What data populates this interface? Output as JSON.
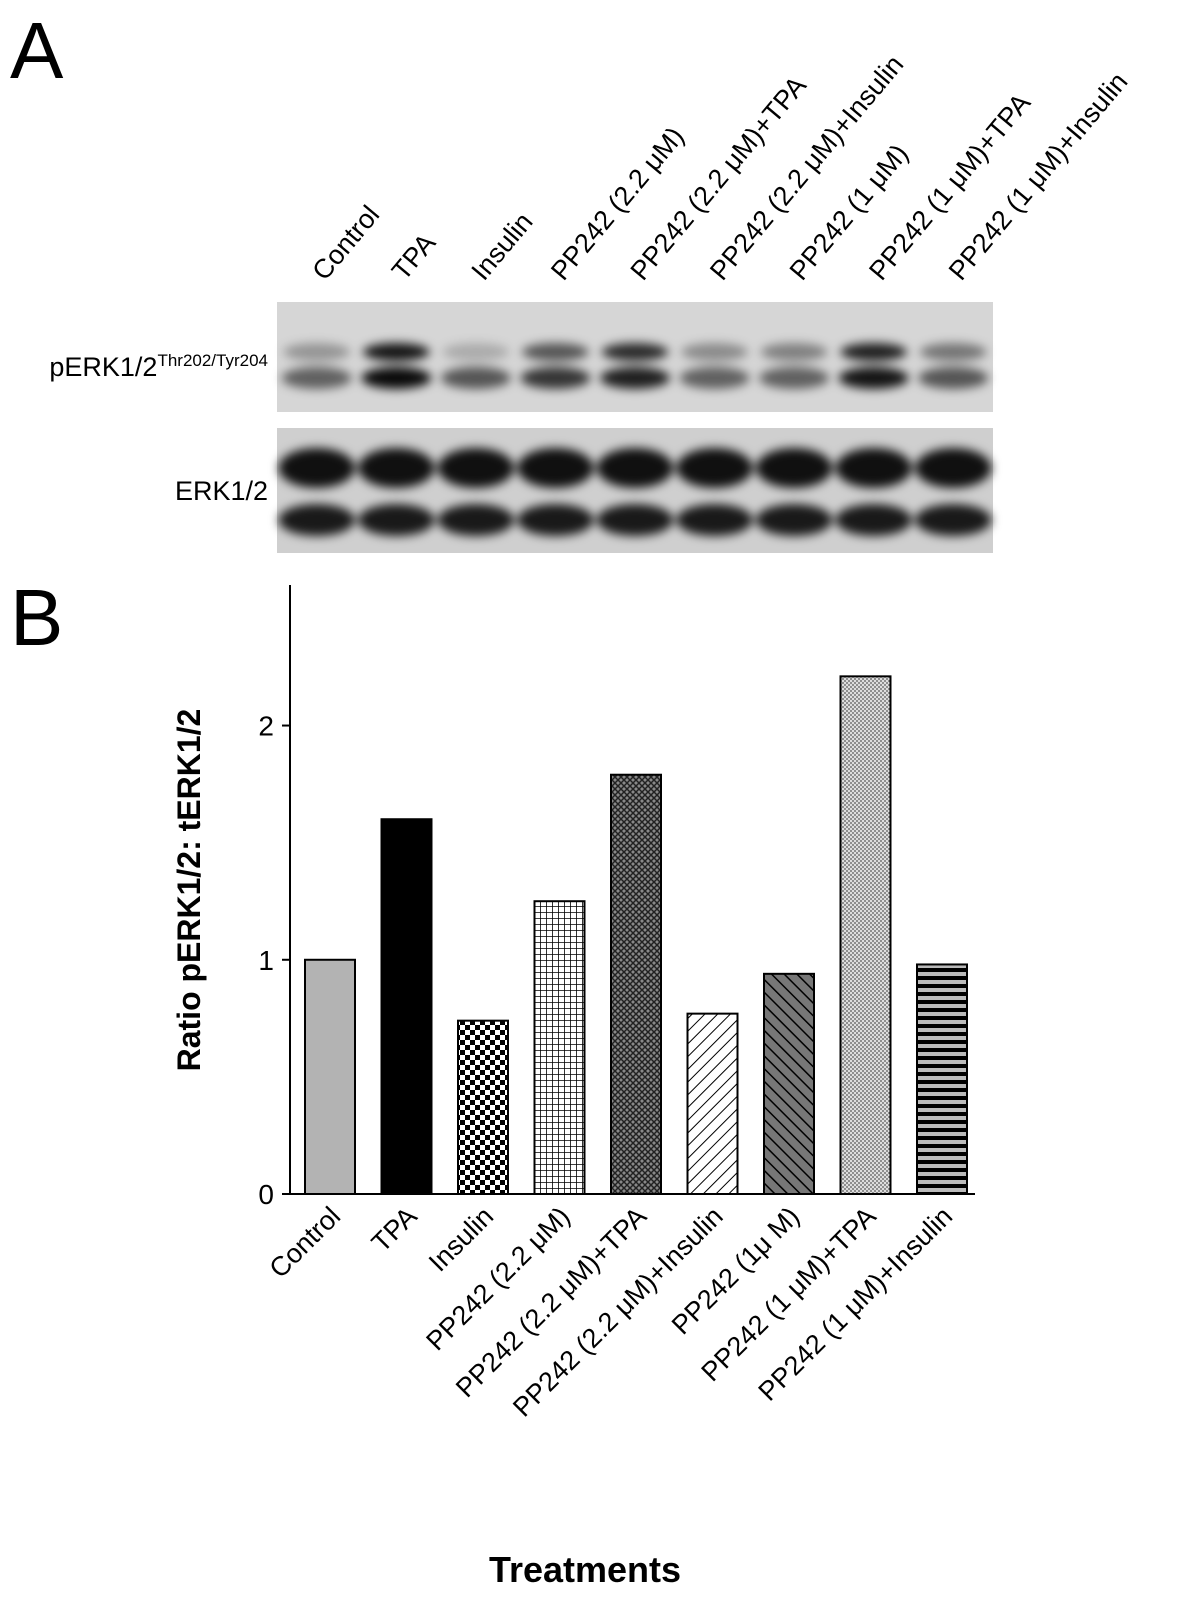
{
  "figure": {
    "panels": [
      "A",
      "B"
    ],
    "blot": {
      "lanes": [
        "Control",
        "TPA",
        "Insulin",
        "PP242 (2.2 μM)",
        "PP242 (2.2 μM)+TPA",
        "PP242 (2.2 μM)+Insulin",
        "PP242 (1 μM)",
        "PP242 (1 μM)+TPA",
        "PP242 (1 μM)+Insulin"
      ],
      "rows": [
        {
          "label": "pERK1/2",
          "superscript": "Thr202/Tyr204"
        },
        {
          "label": "ERK1/2"
        }
      ]
    }
  },
  "chart_data": {
    "type": "bar",
    "ylabel": "Ratio pERK1/2: tERK1/2",
    "xlabel": "Treatments",
    "categories": [
      "Control",
      "TPA",
      "Insulin",
      "PP242 (2.2 μM)",
      "PP242 (2.2 μM)+TPA",
      "PP242 (2.2 μM)+Insulin",
      "PP242 (1μ M)",
      "PP242 (1 μM)+TPA",
      "PP242 (1 μM)+Insulin"
    ],
    "values": [
      1.0,
      1.6,
      0.74,
      1.25,
      1.79,
      0.77,
      0.94,
      2.21,
      0.98
    ],
    "colors": [
      "#b3b3b3",
      "#000000",
      "#ffffff",
      "#ffffff",
      "#ffffff",
      "#ffffff",
      "#ffffff",
      "#ffffff",
      "#ffffff"
    ],
    "patterns": [
      "solid",
      "solid",
      "checker",
      "grid",
      "crosshatch",
      "diagonal",
      "diagonal-dark",
      "dots",
      "horizontal-stripes"
    ],
    "ylim": [
      0,
      2.6
    ],
    "yticks": [
      0,
      1,
      2
    ]
  }
}
